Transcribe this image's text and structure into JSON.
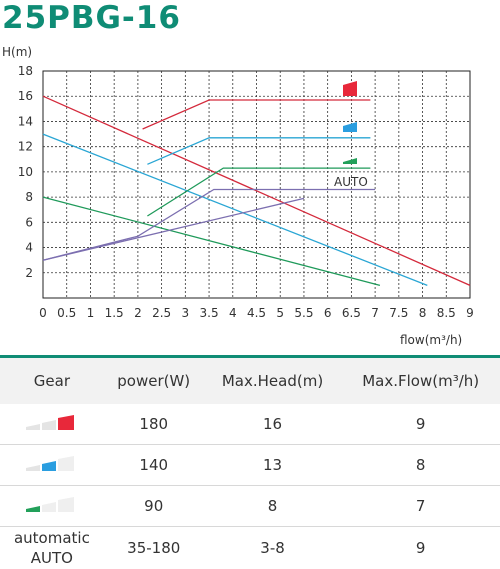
{
  "title": "25PBG-16",
  "chart_data": {
    "type": "line",
    "ylabel": "H(m)",
    "xlabel": "flow(m³/h)",
    "xlim": [
      0,
      9
    ],
    "ylim": [
      0,
      18
    ],
    "xticks": [
      "0",
      "0.5",
      "1",
      "1.5",
      "2",
      "2.5",
      "3",
      "3.5",
      "4",
      "4.5",
      "5",
      "5.5",
      "6",
      "6.5",
      "7",
      "7.5",
      "8",
      "8.5",
      "9"
    ],
    "yticks": [
      "2",
      "4",
      "6",
      "8",
      "10",
      "12",
      "14",
      "16",
      "18"
    ],
    "grid": true,
    "legend_placement": "top-right",
    "series": [
      {
        "color": "#d42a3c",
        "x": [
          0,
          9
        ],
        "y": [
          16,
          1
        ]
      },
      {
        "color": "#2aa6d4",
        "x": [
          0,
          8.1
        ],
        "y": [
          13,
          1
        ]
      },
      {
        "color": "#1f9a5a",
        "x": [
          0,
          7.1
        ],
        "y": [
          8,
          1
        ]
      },
      {
        "color": "#d42a3c",
        "x": [
          2.1,
          3.5,
          6.9
        ],
        "y": [
          13.4,
          15.7,
          15.7
        ]
      },
      {
        "color": "#2aa6d4",
        "x": [
          2.2,
          3.5,
          6.9
        ],
        "y": [
          10.6,
          12.7,
          12.7
        ]
      },
      {
        "color": "#1f9a5a",
        "x": [
          2.2,
          3.8,
          6.9
        ],
        "y": [
          6.5,
          10.3,
          10.3
        ]
      },
      {
        "color": "#7c6fb0",
        "x": [
          0,
          2.0,
          3.6,
          7.0
        ],
        "y": [
          3,
          4.9,
          8.6,
          8.6
        ]
      },
      {
        "color": "#7c6fb0",
        "x": [
          0,
          5.5
        ],
        "y": [
          3,
          7.9
        ]
      }
    ],
    "legend": [
      {
        "gear": 3,
        "color": "#e8283a"
      },
      {
        "gear": 2,
        "color": "#2a9ee0"
      },
      {
        "gear": 1,
        "color": "#22a05a"
      },
      {
        "label": "AUTO",
        "color": "#7c6fb0"
      }
    ]
  },
  "table": {
    "headers": [
      "Gear",
      "power(W)",
      "Max.Head(m)",
      "Max.Flow(m³/h)"
    ],
    "rows": [
      {
        "gear_level": 3,
        "gear_color": "#e8283a",
        "power": "180",
        "head": "16",
        "flow": "9"
      },
      {
        "gear_level": 2,
        "gear_color": "#2a9ee0",
        "power": "140",
        "head": "13",
        "flow": "8"
      },
      {
        "gear_level": 1,
        "gear_color": "#22a05a",
        "power": "90",
        "head": "8",
        "flow": "7"
      }
    ],
    "auto_row": {
      "label_line1": "automatic",
      "label_line2": "AUTO",
      "power": "35-180",
      "head": "3-8",
      "flow": "9"
    }
  }
}
